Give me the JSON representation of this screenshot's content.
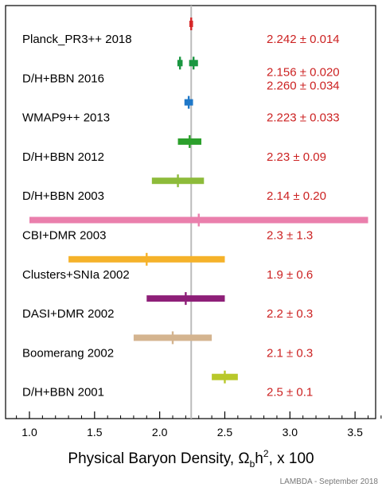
{
  "chart_data": {
    "type": "forest",
    "xlabel": "Physical Baryon Density, Ω_b h², x 100",
    "xlabel_parts": {
      "main": "Physical Baryon Density, Ω",
      "sub": "b",
      "mid": "h",
      "sup": "2",
      "tail": ", x 100"
    },
    "xlim": [
      0.8,
      3.8
    ],
    "xticks": [
      "1.0",
      "1.5",
      "2.0",
      "2.5",
      "3.0",
      "3.5"
    ],
    "xtick_values": [
      1.0,
      1.5,
      2.0,
      2.5,
      3.0,
      3.5
    ],
    "reference_line": 2.242,
    "credit": "LAMBDA - September 2018",
    "rows": [
      {
        "label": "Planck_PR3++ 2018",
        "value_text": "2.242 ± 0.014",
        "points": [
          {
            "value": 2.242,
            "err": 0.014,
            "color": "#d62728"
          }
        ]
      },
      {
        "label": "D/H+BBN 2016",
        "value_text": "2.156 ± 0.020",
        "value_text_2": "2.260 ± 0.034",
        "points": [
          {
            "value": 2.156,
            "err": 0.02,
            "color": "#1a9641"
          },
          {
            "value": 2.26,
            "err": 0.034,
            "color": "#1a9641"
          }
        ]
      },
      {
        "label": "WMAP9++ 2013",
        "value_text": "2.223 ± 0.033",
        "points": [
          {
            "value": 2.223,
            "err": 0.033,
            "color": "#1f78c8"
          }
        ]
      },
      {
        "label": "D/H+BBN 2012",
        "value_text": "2.23 ± 0.09",
        "points": [
          {
            "value": 2.23,
            "err": 0.09,
            "color": "#2ca02c"
          }
        ]
      },
      {
        "label": "D/H+BBN 2003",
        "value_text": "2.14 ± 0.20",
        "points": [
          {
            "value": 2.14,
            "err": 0.2,
            "color": "#8dbb3a"
          }
        ]
      },
      {
        "label": "CBI+DMR 2003",
        "value_text": "2.3 ± 1.3",
        "points": [
          {
            "value": 2.3,
            "err": 1.3,
            "color": "#ea7fac"
          }
        ]
      },
      {
        "label": "Clusters+SNIa 2002",
        "value_text": "1.9 ± 0.6",
        "points": [
          {
            "value": 1.9,
            "err": 0.6,
            "color": "#f5b22a"
          }
        ]
      },
      {
        "label": "DASI+DMR 2002",
        "value_text": "2.2 ± 0.3",
        "points": [
          {
            "value": 2.2,
            "err": 0.3,
            "color": "#8e1f78"
          }
        ]
      },
      {
        "label": "Boomerang 2002",
        "value_text": "2.1 ± 0.3",
        "points": [
          {
            "value": 2.1,
            "err": 0.3,
            "color": "#d4b48f"
          }
        ]
      },
      {
        "label": "D/H+BBN 2001",
        "value_text": "2.5 ± 0.1",
        "points": [
          {
            "value": 2.5,
            "err": 0.1,
            "color": "#b8c82a"
          }
        ]
      }
    ]
  }
}
